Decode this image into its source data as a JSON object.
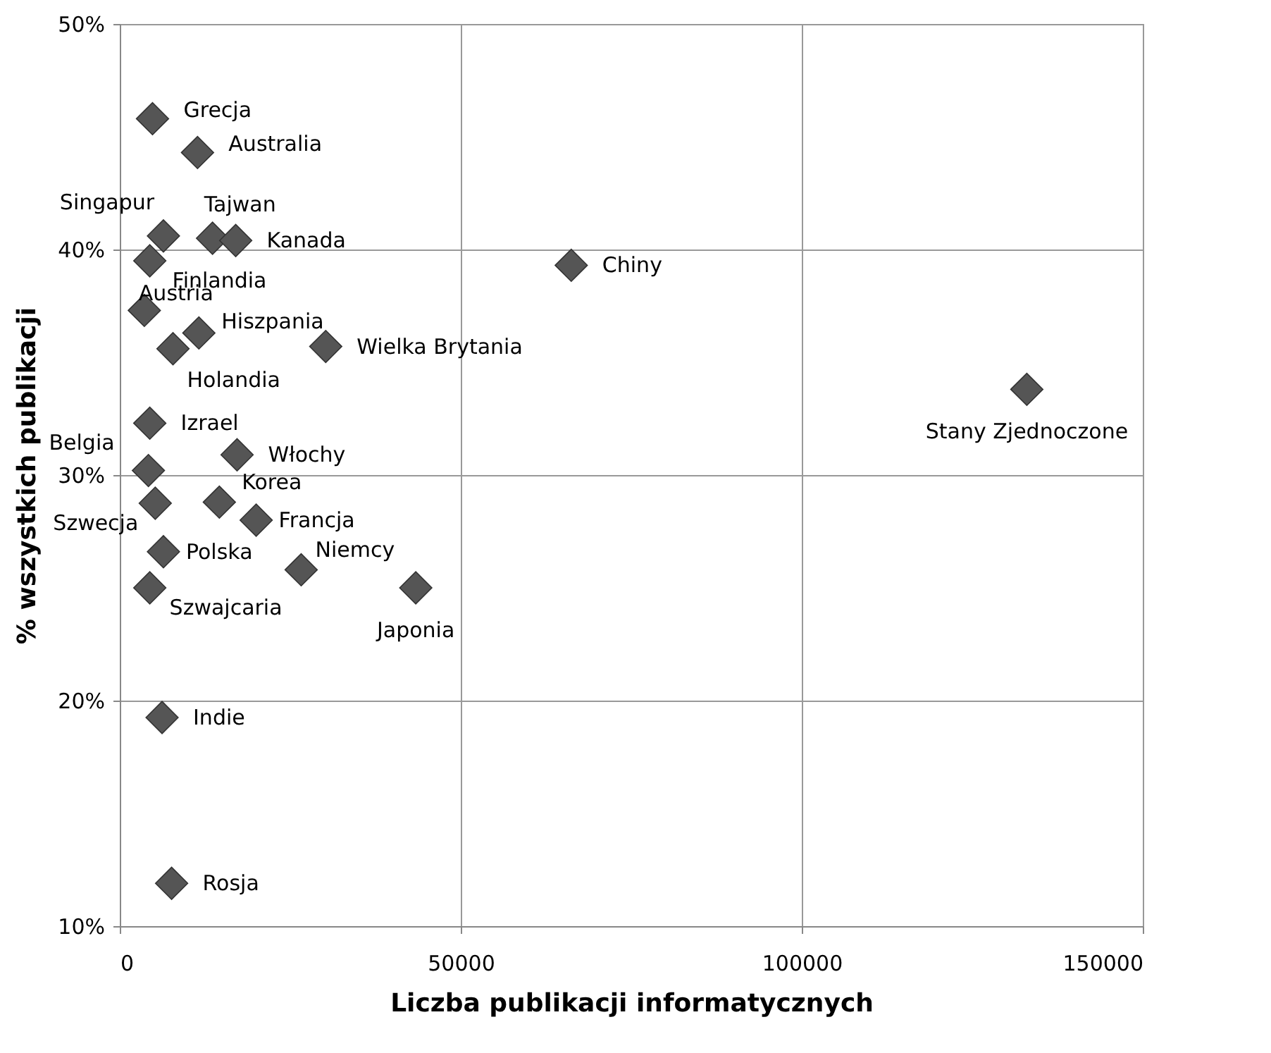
{
  "chart_data": {
    "type": "scatter",
    "xlabel": "Liczba publikacji informatycznych",
    "ylabel": "% wszystkich publikacji",
    "x": [
      4800,
      11400,
      6400,
      13600,
      17000,
      4400,
      66200,
      3600,
      11600,
      7800,
      30200,
      133000,
      4400,
      17200,
      4200,
      5200,
      14600,
      20000,
      6400,
      26600,
      43400,
      4400,
      6200,
      7600
    ],
    "series": [
      {
        "color": "#555555",
        "values": [
          45.8,
          44.3,
          40.6,
          40.5,
          40.4,
          39.5,
          39.3,
          37.3,
          36.3,
          35.6,
          35.7,
          33.8,
          32.3,
          30.9,
          30.2,
          28.75,
          28.8,
          28.0,
          26.6,
          25.8,
          25.0,
          25.0,
          19.25,
          11.9
        ]
      }
    ],
    "annotations": [
      {
        "text": "Grecja",
        "x": 4800,
        "y": 45.8
      },
      {
        "text": "Australia",
        "x": 11400,
        "y": 44.3
      },
      {
        "text": "Singapur",
        "x": 6400,
        "y": 40.6
      },
      {
        "text": "Tajwan",
        "x": 13600,
        "y": 40.5
      },
      {
        "text": "Kanada",
        "x": 17000,
        "y": 40.4
      },
      {
        "text": "Finlandia",
        "x": 4400,
        "y": 39.5
      },
      {
        "text": "Chiny",
        "x": 66200,
        "y": 39.3
      },
      {
        "text": "Austria",
        "x": 3600,
        "y": 37.3
      },
      {
        "text": "Hiszpania",
        "x": 11600,
        "y": 36.3
      },
      {
        "text": "Holandia",
        "x": 7800,
        "y": 35.6
      },
      {
        "text": "Wielka Brytania",
        "x": 30200,
        "y": 35.7
      },
      {
        "text": "Stany Zjednoczone",
        "x": 133000,
        "y": 33.8
      },
      {
        "text": "Izrael",
        "x": 4400,
        "y": 32.3
      },
      {
        "text": "Włochy",
        "x": 17200,
        "y": 30.9
      },
      {
        "text": "Belgia",
        "x": 4200,
        "y": 30.2
      },
      {
        "text": "Szwecja",
        "x": 5200,
        "y": 28.75
      },
      {
        "text": "Korea",
        "x": 14600,
        "y": 28.8
      },
      {
        "text": "Francja",
        "x": 20000,
        "y": 28.0
      },
      {
        "text": "Polska",
        "x": 6400,
        "y": 26.6
      },
      {
        "text": "Niemcy",
        "x": 26600,
        "y": 25.8
      },
      {
        "text": "Japonia",
        "x": 43400,
        "y": 25.0
      },
      {
        "text": "Szwajcaria",
        "x": 4400,
        "y": 25.0
      },
      {
        "text": "Indie",
        "x": 6200,
        "y": 19.25
      },
      {
        "text": "Rosja",
        "x": 7600,
        "y": 11.9
      }
    ],
    "xlim": [
      0,
      150000
    ],
    "xticks": [
      0,
      50000,
      100000,
      150000
    ],
    "ylim": [
      10,
      50
    ],
    "yticks": [
      {
        "value": 10,
        "label": "10%"
      },
      {
        "value": 20,
        "label": "20%"
      },
      {
        "value": 30,
        "label": "30%"
      },
      {
        "value": 40,
        "label": "40%"
      },
      {
        "value": 50,
        "label": "50%"
      }
    ],
    "grid": true,
    "marker": "diamond"
  }
}
